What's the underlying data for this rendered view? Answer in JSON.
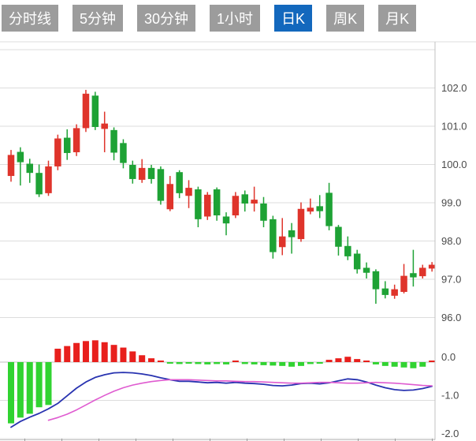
{
  "tabs": {
    "items": [
      {
        "label": "分时线",
        "active": false
      },
      {
        "label": "5分钟",
        "active": false
      },
      {
        "label": "30分钟",
        "active": false
      },
      {
        "label": "1小时",
        "active": false
      },
      {
        "label": "日K",
        "active": true
      },
      {
        "label": "周K",
        "active": false
      },
      {
        "label": "月K",
        "active": false
      }
    ]
  },
  "colors": {
    "tab_bg": "#9C9C9C",
    "tab_active_bg": "#1368BD",
    "tab_text": "#FFFFFF",
    "up": "#DF342B",
    "down": "#1EA235",
    "hist_up": "#E81F1C",
    "hist_down": "#31D331",
    "dif_line": "#2833B0",
    "dea_line": "#DF5BD0",
    "grid": "#DDDDDD",
    "axis": "#C2C2C2",
    "label": "#4A4A4A"
  },
  "chart_data": [
    {
      "type": "candlestick",
      "panel": "price",
      "title": "",
      "xlabel": "",
      "ylabel": "",
      "grid": true,
      "ylim": [
        95.8,
        103.1
      ],
      "yticks": [
        103,
        102,
        101,
        100,
        99,
        98,
        97,
        96
      ],
      "ylabels": [
        "",
        "102.0",
        "101.0",
        "100.0",
        "99.0",
        "98.0",
        "97.0",
        "96.0"
      ],
      "candles_format": "[open, close, high, low] — red means close >= open (rise), green means fall",
      "candles": [
        [
          99.7,
          100.25,
          100.38,
          99.55
        ],
        [
          100.33,
          100.06,
          100.45,
          99.45
        ],
        [
          100.02,
          99.78,
          100.15,
          99.52
        ],
        [
          99.78,
          99.22,
          100.0,
          99.15
        ],
        [
          99.25,
          99.95,
          100.1,
          99.18
        ],
        [
          99.95,
          100.68,
          100.78,
          99.85
        ],
        [
          100.7,
          100.3,
          100.92,
          100.12
        ],
        [
          100.32,
          100.95,
          101.05,
          100.22
        ],
        [
          100.95,
          101.85,
          101.95,
          100.85
        ],
        [
          101.8,
          100.98,
          101.9,
          100.9
        ],
        [
          100.93,
          101.07,
          101.38,
          100.32
        ],
        [
          100.9,
          100.31,
          100.97,
          100.11
        ],
        [
          100.56,
          100.04,
          100.66,
          99.9
        ],
        [
          99.99,
          99.62,
          100.1,
          99.5
        ],
        [
          99.6,
          99.91,
          100.14,
          99.52
        ],
        [
          99.91,
          99.62,
          99.99,
          99.5
        ],
        [
          99.88,
          99.05,
          99.95,
          98.95
        ],
        [
          98.83,
          99.49,
          99.7,
          98.78
        ],
        [
          99.8,
          99.25,
          99.85,
          99.12
        ],
        [
          99.18,
          99.39,
          99.59,
          98.86
        ],
        [
          99.35,
          98.57,
          99.42,
          98.36
        ],
        [
          98.64,
          99.21,
          99.28,
          98.55
        ],
        [
          99.35,
          98.67,
          99.4,
          98.53
        ],
        [
          98.64,
          98.46,
          98.75,
          98.15
        ],
        [
          98.67,
          99.18,
          99.28,
          98.6
        ],
        [
          99.22,
          98.98,
          99.32,
          98.77
        ],
        [
          98.98,
          99.08,
          99.42,
          98.77
        ],
        [
          98.98,
          98.53,
          99.15,
          98.36
        ],
        [
          98.57,
          97.71,
          98.66,
          97.54
        ],
        [
          97.84,
          98.12,
          98.6,
          97.63
        ],
        [
          98.28,
          98.1,
          98.47,
          97.67
        ],
        [
          98.05,
          98.84,
          99.01,
          97.98
        ],
        [
          98.77,
          98.87,
          99.11,
          98.7
        ],
        [
          98.91,
          98.78,
          99.2,
          98.6
        ],
        [
          99.26,
          98.39,
          99.52,
          98.28
        ],
        [
          98.37,
          97.85,
          98.42,
          97.62
        ],
        [
          97.87,
          97.6,
          98.12,
          97.5
        ],
        [
          97.67,
          97.26,
          97.77,
          97.15
        ],
        [
          97.3,
          97.17,
          97.44,
          97.02
        ],
        [
          97.21,
          96.74,
          97.26,
          96.36
        ],
        [
          96.76,
          96.59,
          96.95,
          96.5
        ],
        [
          96.57,
          96.74,
          96.86,
          96.49
        ],
        [
          96.67,
          97.09,
          97.4,
          96.63
        ],
        [
          97.16,
          97.05,
          97.77,
          96.81
        ],
        [
          97.08,
          97.3,
          97.38,
          97.02
        ],
        [
          97.28,
          97.38,
          97.45,
          97.2
        ]
      ]
    },
    {
      "type": "bar",
      "panel": "macd",
      "title": "",
      "grid": true,
      "ylim": [
        -2.05,
        0.25
      ],
      "yticks": [
        0,
        -1,
        -2
      ],
      "ylabels": [
        "0.0",
        "-1.0",
        "-2.0"
      ],
      "histogram": [
        -1.6,
        -1.45,
        -1.35,
        -1.18,
        -1.12,
        0.35,
        0.42,
        0.5,
        0.55,
        0.57,
        0.52,
        0.45,
        0.38,
        0.28,
        0.18,
        0.1,
        0.03,
        -0.03,
        -0.05,
        -0.04,
        -0.05,
        -0.06,
        -0.05,
        -0.06,
        0.03,
        -0.05,
        -0.06,
        -0.08,
        -0.09,
        -0.1,
        -0.12,
        -0.1,
        -0.05,
        -0.04,
        0.06,
        0.1,
        0.14,
        0.08,
        0.03,
        -0.06,
        -0.1,
        -0.12,
        -0.14,
        -0.16,
        -0.12,
        0.04
      ],
      "series": [
        {
          "name": "DIF",
          "color_key": "dif_line",
          "values": [
            -1.7,
            -1.55,
            -1.44,
            -1.34,
            -1.22,
            -1.08,
            -0.88,
            -0.68,
            -0.52,
            -0.4,
            -0.33,
            -0.28,
            -0.27,
            -0.28,
            -0.31,
            -0.35,
            -0.41,
            -0.46,
            -0.5,
            -0.5,
            -0.52,
            -0.54,
            -0.53,
            -0.55,
            -0.53,
            -0.55,
            -0.56,
            -0.58,
            -0.61,
            -0.62,
            -0.6,
            -0.56,
            -0.55,
            -0.57,
            -0.54,
            -0.49,
            -0.44,
            -0.46,
            -0.52,
            -0.6,
            -0.67,
            -0.72,
            -0.74,
            -0.73,
            -0.69,
            -0.63
          ]
        },
        {
          "name": "DEA",
          "color_key": "dea_line",
          "values": [
            null,
            null,
            null,
            null,
            -1.52,
            -1.45,
            -1.36,
            -1.25,
            -1.12,
            -0.99,
            -0.87,
            -0.76,
            -0.67,
            -0.6,
            -0.55,
            -0.51,
            -0.48,
            -0.46,
            -0.46,
            -0.46,
            -0.47,
            -0.48,
            -0.49,
            -0.49,
            -0.5,
            -0.51,
            -0.51,
            -0.52,
            -0.53,
            -0.54,
            -0.55,
            -0.55,
            -0.54,
            -0.53,
            -0.53,
            -0.54,
            -0.55,
            -0.55,
            -0.54,
            -0.53,
            -0.54,
            -0.55,
            -0.57,
            -0.59,
            -0.61,
            -0.62
          ]
        }
      ]
    }
  ]
}
